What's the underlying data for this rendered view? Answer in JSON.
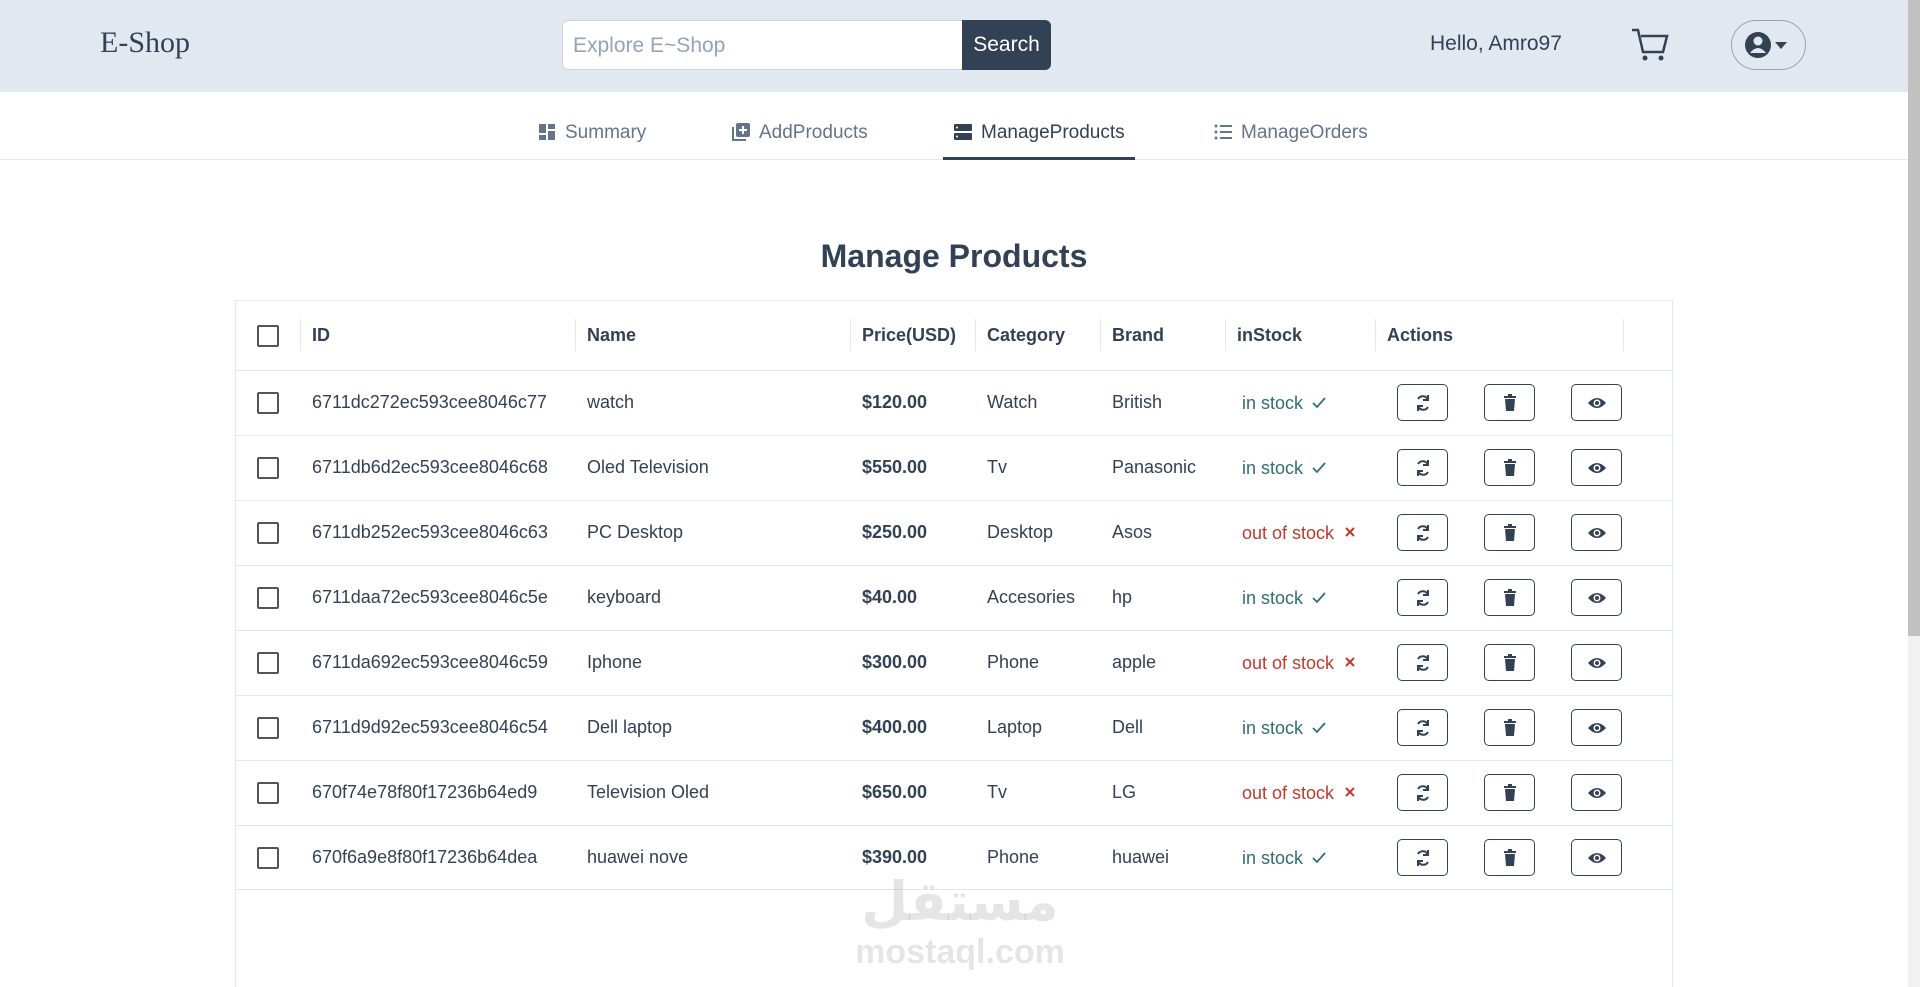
{
  "header": {
    "logo": "E-Shop",
    "search_placeholder": "Explore E~Shop",
    "search_button": "Search",
    "greeting": "Hello, Amro97"
  },
  "tabs": [
    "Summary",
    "AddProducts",
    "ManageProducts",
    "ManageOrders"
  ],
  "active_tab": 2,
  "title": "Manage Products",
  "table": {
    "columns": [
      "ID",
      "Name",
      "Price(USD)",
      "Category",
      "Brand",
      "inStock",
      "Actions"
    ],
    "rows": [
      [
        "6711dc272ec593cee8046c77",
        "watch",
        "$120.00",
        "Watch",
        "British",
        "in stock"
      ],
      [
        "6711db6d2ec593cee8046c68",
        "Oled Television",
        "$550.00",
        "Tv",
        "Panasonic",
        "in stock"
      ],
      [
        "6711db252ec593cee8046c63",
        "PC Desktop",
        "$250.00",
        "Desktop",
        "Asos",
        "out of stock"
      ],
      [
        "6711daa72ec593cee8046c5e",
        "keyboard",
        "$40.00",
        "Accesories",
        "hp",
        "in stock"
      ],
      [
        "6711da692ec593cee8046c59",
        "Iphone",
        "$300.00",
        "Phone",
        "apple",
        "out of stock"
      ],
      [
        "6711d9d92ec593cee8046c54",
        "Dell laptop",
        "$400.00",
        "Laptop",
        "Dell",
        "in stock"
      ],
      [
        "670f74e78f80f17236b64ed9",
        "Television Oled",
        "$650.00",
        "Tv",
        "LG",
        "out of stock"
      ],
      [
        "670f6a9e8f80f17236b64dea",
        "huawei nove",
        "$390.00",
        "Phone",
        "huawei",
        "in stock"
      ]
    ]
  },
  "watermark": {
    "mark": "مستقل",
    "site": "mostaql.com"
  }
}
